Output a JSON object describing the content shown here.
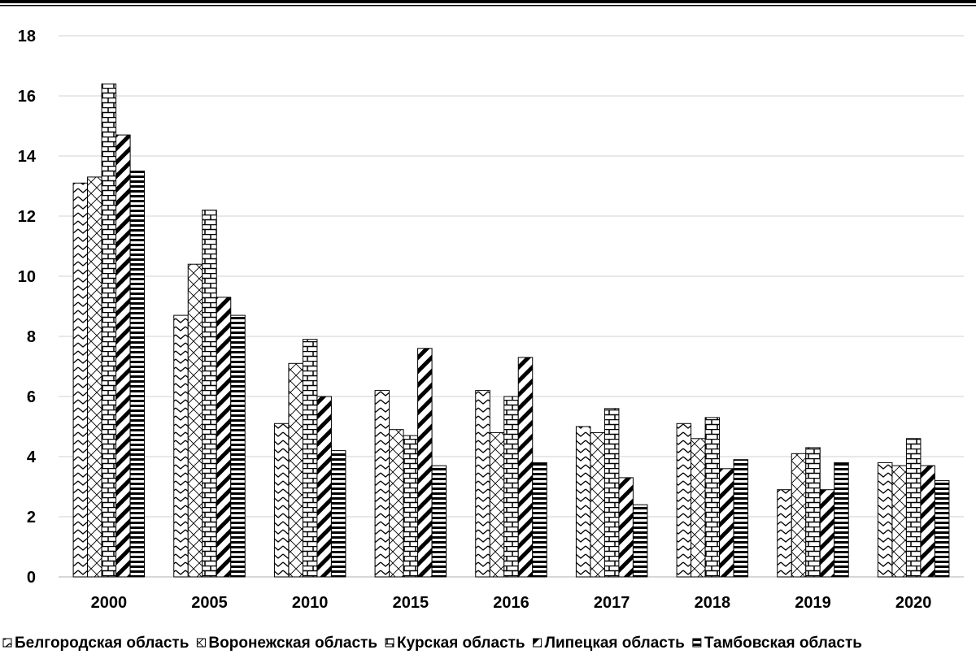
{
  "chart_data": {
    "type": "bar",
    "title": "",
    "xlabel": "",
    "ylabel": "",
    "categories": [
      "2000",
      "2005",
      "2010",
      "2015",
      "2016",
      "2017",
      "2018",
      "2019",
      "2020"
    ],
    "ylim": [
      0,
      18
    ],
    "yticks": [
      "0",
      "2",
      "4",
      "6",
      "8",
      "10",
      "12",
      "14",
      "16",
      "18"
    ],
    "grid": "horizontal",
    "legend_position": "bottom",
    "series": [
      {
        "name": "Белгородская область",
        "pattern": "zigzag",
        "values": [
          13.1,
          8.7,
          5.1,
          6.2,
          6.2,
          5.0,
          5.1,
          2.9,
          3.8
        ]
      },
      {
        "name": "Воронежская область",
        "pattern": "diagonal-cross",
        "values": [
          13.3,
          10.4,
          7.1,
          4.9,
          4.8,
          4.8,
          4.6,
          4.1,
          3.7
        ]
      },
      {
        "name": "Курская область",
        "pattern": "brick",
        "values": [
          16.4,
          12.2,
          7.9,
          4.7,
          6.0,
          5.6,
          5.3,
          4.3,
          4.6
        ]
      },
      {
        "name": "Липецкая область",
        "pattern": "wide-diagonal",
        "values": [
          14.7,
          9.3,
          6.0,
          7.6,
          7.3,
          3.3,
          3.6,
          2.9,
          3.7
        ]
      },
      {
        "name": "Тамбовская область",
        "pattern": "horizontal",
        "values": [
          13.5,
          8.7,
          4.2,
          3.7,
          3.8,
          2.4,
          3.9,
          3.8,
          3.2
        ]
      }
    ]
  }
}
